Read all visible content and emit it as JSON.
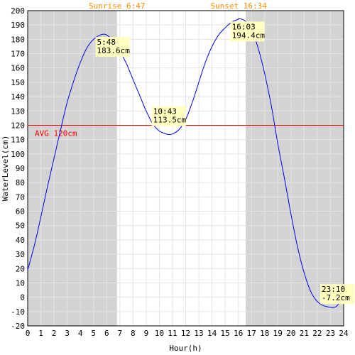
{
  "chart_data": {
    "type": "line",
    "title": "",
    "xlabel": "Hour(h)",
    "ylabel": "WaterLevel(cm)",
    "xlim": [
      0,
      24
    ],
    "ylim": [
      -20,
      200
    ],
    "x_ticks": [
      0,
      1,
      2,
      3,
      4,
      5,
      6,
      7,
      8,
      9,
      10,
      11,
      12,
      13,
      14,
      15,
      16,
      17,
      18,
      19,
      20,
      21,
      22,
      23,
      24
    ],
    "y_ticks": [
      -20,
      -10,
      0,
      10,
      20,
      30,
      40,
      50,
      60,
      70,
      80,
      90,
      100,
      110,
      120,
      130,
      140,
      150,
      160,
      170,
      180,
      190,
      200
    ],
    "grid": true,
    "legend": "none",
    "sunrise_label": "Sunrise 6:47",
    "sunset_label": "Sunset 16:34",
    "sunrise_hour": 6.783,
    "sunset_hour": 16.567,
    "average": {
      "label": "AVG 120cm",
      "value": 120
    },
    "series": [
      {
        "x": [
          0,
          0.5,
          1,
          1.5,
          2,
          2.5,
          3,
          3.5,
          4,
          4.5,
          5,
          5.5,
          5.8,
          6,
          6.5,
          7,
          7.5,
          8,
          8.5,
          9,
          9.5,
          10,
          10.5,
          10.72,
          11,
          11.5,
          12,
          12.5,
          13,
          13.5,
          14,
          14.5,
          15,
          15.5,
          16,
          16.05,
          16.5,
          17,
          17.5,
          18,
          18.5,
          19,
          19.5,
          20,
          20.5,
          21,
          21.5,
          22,
          22.5,
          23,
          23.17,
          23.5,
          24
        ],
        "y": [
          19,
          36,
          56,
          77,
          97,
          117,
          136,
          151,
          164,
          174,
          180,
          183,
          183.6,
          183,
          179,
          172,
          163,
          152,
          141,
          130,
          121,
          116,
          114,
          113.5,
          114,
          117,
          124,
          136,
          150,
          164,
          175,
          183,
          188,
          192,
          194,
          194.4,
          193,
          187,
          174,
          156,
          134,
          107,
          83,
          58,
          35,
          17,
          4,
          -3,
          -6,
          -7,
          -7.2,
          -6,
          1
        ]
      }
    ],
    "annotations": [
      {
        "time": "5:48",
        "level": "183.6cm",
        "x": 5.8,
        "y": 183.6
      },
      {
        "time": "10:43",
        "level": "113.5cm",
        "x": 10.72,
        "y": 113.5
      },
      {
        "time": "16:03",
        "level": "194.4cm",
        "x": 16.05,
        "y": 194.4
      },
      {
        "time": "23:10",
        "level": "-7.2cm",
        "x": 23.17,
        "y": -7.2
      }
    ],
    "colors": {
      "line": "#0000ee",
      "average": "#ff0000",
      "night": "#d3d3d3",
      "annotation_bg": "#ffffc0",
      "sun_label": "#ff8c00",
      "grid": "#e4e4e4"
    }
  }
}
